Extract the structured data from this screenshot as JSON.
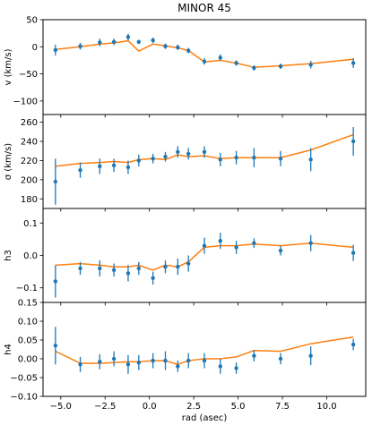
{
  "title": "MINOR 45",
  "x_label": "rad (asec)",
  "x_ticks": [
    -5,
    -2.5,
    0,
    2.5,
    5,
    7.5,
    10
  ],
  "x_tick_labels": [
    "−5.0",
    "−2.5",
    "0.0",
    "2.5",
    "5.0",
    "7.5",
    "10.0"
  ],
  "xlim": [
    -6.0,
    12.2
  ],
  "colors": {
    "data": "#1f77b4",
    "model": "#ff7f0e"
  },
  "chart_data": [
    {
      "type": "scatter",
      "ylabel": "v (km/s)",
      "ylim": [
        -125,
        50
      ],
      "yticks": [
        50,
        0,
        -50,
        -100
      ],
      "ytick_labels": [
        "50",
        "0",
        "−50",
        "−100"
      ],
      "points": [
        {
          "x": -5.3,
          "y": -6,
          "err": 10
        },
        {
          "x": -3.9,
          "y": 1,
          "err": 6
        },
        {
          "x": -2.8,
          "y": 8,
          "err": 7
        },
        {
          "x": -2.0,
          "y": 9,
          "err": 6
        },
        {
          "x": -1.2,
          "y": 18,
          "err": 6
        },
        {
          "x": -0.6,
          "y": 9,
          "err": 4
        },
        {
          "x": 0.2,
          "y": 12,
          "err": 5
        },
        {
          "x": 0.9,
          "y": 1,
          "err": 5
        },
        {
          "x": 1.6,
          "y": -1,
          "err": 5
        },
        {
          "x": 2.2,
          "y": -7,
          "err": 5
        },
        {
          "x": 3.1,
          "y": -27,
          "err": 6
        },
        {
          "x": 4.0,
          "y": -20,
          "err": 6
        },
        {
          "x": 4.9,
          "y": -30,
          "err": 5
        },
        {
          "x": 5.9,
          "y": -39,
          "err": 5
        },
        {
          "x": 7.4,
          "y": -36,
          "err": 5
        },
        {
          "x": 9.1,
          "y": -33,
          "err": 7
        },
        {
          "x": 11.5,
          "y": -30,
          "err": 9
        }
      ],
      "model": [
        {
          "x": -5.3,
          "y": -5
        },
        {
          "x": -3.9,
          "y": 0
        },
        {
          "x": -2.8,
          "y": 5
        },
        {
          "x": -2.0,
          "y": 7
        },
        {
          "x": -1.2,
          "y": 11
        },
        {
          "x": -0.6,
          "y": -8
        },
        {
          "x": 0.2,
          "y": 5
        },
        {
          "x": 0.9,
          "y": 2
        },
        {
          "x": 1.6,
          "y": -2
        },
        {
          "x": 2.2,
          "y": -7
        },
        {
          "x": 3.1,
          "y": -28
        },
        {
          "x": 4.0,
          "y": -25
        },
        {
          "x": 4.9,
          "y": -30
        },
        {
          "x": 5.9,
          "y": -38
        },
        {
          "x": 7.4,
          "y": -35
        },
        {
          "x": 9.1,
          "y": -31
        },
        {
          "x": 11.5,
          "y": -23
        }
      ]
    },
    {
      "type": "scatter",
      "ylabel": "σ (km/s)",
      "ylim": [
        170,
        268
      ],
      "yticks": [
        260,
        240,
        220,
        200,
        180
      ],
      "ytick_labels": [
        "260",
        "240",
        "220",
        "200",
        "180"
      ],
      "points": [
        {
          "x": -5.3,
          "y": 198,
          "err": 24
        },
        {
          "x": -3.9,
          "y": 210,
          "err": 8
        },
        {
          "x": -2.8,
          "y": 214,
          "err": 8
        },
        {
          "x": -2.0,
          "y": 215,
          "err": 7
        },
        {
          "x": -1.2,
          "y": 213,
          "err": 7
        },
        {
          "x": -0.6,
          "y": 220,
          "err": 6
        },
        {
          "x": 0.2,
          "y": 222,
          "err": 5
        },
        {
          "x": 0.9,
          "y": 224,
          "err": 5
        },
        {
          "x": 1.6,
          "y": 229,
          "err": 6
        },
        {
          "x": 2.2,
          "y": 227,
          "err": 6
        },
        {
          "x": 3.1,
          "y": 229,
          "err": 6
        },
        {
          "x": 4.0,
          "y": 221,
          "err": 7
        },
        {
          "x": 4.9,
          "y": 223,
          "err": 7
        },
        {
          "x": 5.9,
          "y": 223,
          "err": 10
        },
        {
          "x": 7.4,
          "y": 222,
          "err": 8
        },
        {
          "x": 9.1,
          "y": 221,
          "err": 12
        },
        {
          "x": 11.5,
          "y": 240,
          "err": 15
        }
      ],
      "model": [
        {
          "x": -5.3,
          "y": 214
        },
        {
          "x": -3.9,
          "y": 217
        },
        {
          "x": -2.8,
          "y": 218
        },
        {
          "x": -2.0,
          "y": 219
        },
        {
          "x": -1.2,
          "y": 218
        },
        {
          "x": -0.6,
          "y": 221
        },
        {
          "x": 0.2,
          "y": 222
        },
        {
          "x": 0.9,
          "y": 221
        },
        {
          "x": 1.6,
          "y": 226
        },
        {
          "x": 2.2,
          "y": 224
        },
        {
          "x": 3.1,
          "y": 225
        },
        {
          "x": 4.0,
          "y": 222
        },
        {
          "x": 4.9,
          "y": 223
        },
        {
          "x": 5.9,
          "y": 223
        },
        {
          "x": 7.4,
          "y": 223
        },
        {
          "x": 9.1,
          "y": 231
        },
        {
          "x": 11.5,
          "y": 247
        }
      ]
    },
    {
      "type": "scatter",
      "ylabel": "h3",
      "ylim": [
        -0.145,
        0.145
      ],
      "yticks": [
        0.1,
        0.0,
        -0.1
      ],
      "ytick_labels": [
        "0.1",
        "0.0",
        "−0.1"
      ],
      "points": [
        {
          "x": -5.3,
          "y": -0.08,
          "err": 0.05
        },
        {
          "x": -3.9,
          "y": -0.04,
          "err": 0.02
        },
        {
          "x": -2.8,
          "y": -0.04,
          "err": 0.025
        },
        {
          "x": -2.0,
          "y": -0.045,
          "err": 0.02
        },
        {
          "x": -1.2,
          "y": -0.055,
          "err": 0.025
        },
        {
          "x": -0.6,
          "y": -0.04,
          "err": 0.02
        },
        {
          "x": 0.2,
          "y": -0.07,
          "err": 0.02
        },
        {
          "x": 0.9,
          "y": -0.035,
          "err": 0.02
        },
        {
          "x": 1.6,
          "y": -0.035,
          "err": 0.025
        },
        {
          "x": 2.2,
          "y": -0.025,
          "err": 0.025
        },
        {
          "x": 3.1,
          "y": 0.03,
          "err": 0.025
        },
        {
          "x": 4.0,
          "y": 0.045,
          "err": 0.025
        },
        {
          "x": 4.9,
          "y": 0.025,
          "err": 0.02
        },
        {
          "x": 5.9,
          "y": 0.038,
          "err": 0.015
        },
        {
          "x": 7.4,
          "y": 0.015,
          "err": 0.015
        },
        {
          "x": 9.1,
          "y": 0.038,
          "err": 0.025
        },
        {
          "x": 11.5,
          "y": 0.008,
          "err": 0.025
        }
      ],
      "model": [
        {
          "x": -5.3,
          "y": -0.03
        },
        {
          "x": -3.9,
          "y": -0.025
        },
        {
          "x": -2.8,
          "y": -0.03
        },
        {
          "x": -2.0,
          "y": -0.035
        },
        {
          "x": -1.2,
          "y": -0.035
        },
        {
          "x": -0.6,
          "y": -0.03
        },
        {
          "x": 0.2,
          "y": -0.045
        },
        {
          "x": 0.9,
          "y": -0.03
        },
        {
          "x": 1.6,
          "y": -0.035
        },
        {
          "x": 2.2,
          "y": -0.02
        },
        {
          "x": 3.1,
          "y": 0.025
        },
        {
          "x": 4.0,
          "y": 0.03
        },
        {
          "x": 4.9,
          "y": 0.03
        },
        {
          "x": 5.9,
          "y": 0.035
        },
        {
          "x": 7.4,
          "y": 0.03
        },
        {
          "x": 9.1,
          "y": 0.038
        },
        {
          "x": 11.5,
          "y": 0.025
        }
      ]
    },
    {
      "type": "scatter",
      "ylabel": "h4",
      "ylim": [
        -0.1,
        0.15
      ],
      "yticks": [
        0.15,
        0.1,
        0.05,
        0.0,
        -0.05,
        -0.1
      ],
      "ytick_labels": [
        "0.15",
        "0.10",
        "0.05",
        "0.00",
        "−0.05",
        "−0.10"
      ],
      "points": [
        {
          "x": -5.3,
          "y": 0.035,
          "err": 0.05
        },
        {
          "x": -3.9,
          "y": -0.015,
          "err": 0.02
        },
        {
          "x": -2.8,
          "y": -0.008,
          "err": 0.02
        },
        {
          "x": -2.0,
          "y": 0.0,
          "err": 0.02
        },
        {
          "x": -1.2,
          "y": -0.015,
          "err": 0.025
        },
        {
          "x": -0.6,
          "y": -0.01,
          "err": 0.02
        },
        {
          "x": 0.2,
          "y": -0.005,
          "err": 0.02
        },
        {
          "x": 0.9,
          "y": -0.005,
          "err": 0.025
        },
        {
          "x": 1.6,
          "y": -0.02,
          "err": 0.015
        },
        {
          "x": 2.2,
          "y": -0.005,
          "err": 0.02
        },
        {
          "x": 3.1,
          "y": -0.005,
          "err": 0.02
        },
        {
          "x": 4.0,
          "y": -0.02,
          "err": 0.02
        },
        {
          "x": 4.9,
          "y": -0.025,
          "err": 0.015
        },
        {
          "x": 5.9,
          "y": 0.008,
          "err": 0.015
        },
        {
          "x": 7.4,
          "y": 0.0,
          "err": 0.015
        },
        {
          "x": 9.1,
          "y": 0.008,
          "err": 0.025
        },
        {
          "x": 11.5,
          "y": 0.038,
          "err": 0.015
        }
      ],
      "model": [
        {
          "x": -5.3,
          "y": 0.02
        },
        {
          "x": -3.9,
          "y": -0.012
        },
        {
          "x": -2.8,
          "y": -0.012
        },
        {
          "x": -2.0,
          "y": -0.01
        },
        {
          "x": -1.2,
          "y": -0.008
        },
        {
          "x": -0.6,
          "y": -0.008
        },
        {
          "x": 0.2,
          "y": -0.005
        },
        {
          "x": 0.9,
          "y": -0.005
        },
        {
          "x": 1.6,
          "y": -0.015
        },
        {
          "x": 2.2,
          "y": -0.005
        },
        {
          "x": 3.1,
          "y": 0.0
        },
        {
          "x": 4.0,
          "y": 0.0
        },
        {
          "x": 4.9,
          "y": 0.005
        },
        {
          "x": 5.9,
          "y": 0.022
        },
        {
          "x": 7.4,
          "y": 0.02
        },
        {
          "x": 9.1,
          "y": 0.04
        },
        {
          "x": 11.5,
          "y": 0.058
        }
      ]
    }
  ]
}
